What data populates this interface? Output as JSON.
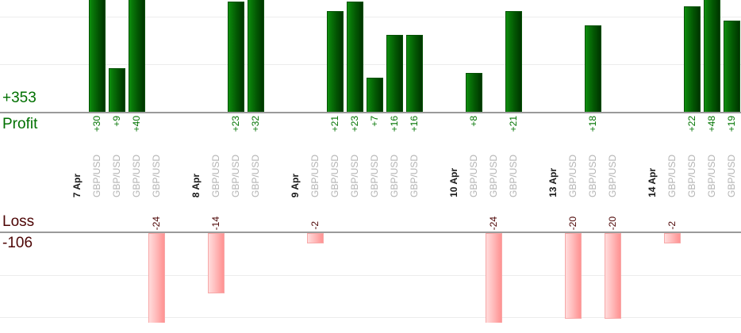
{
  "summary": {
    "profit_total": "+353",
    "profit_label": "Profit",
    "loss_label": "Loss",
    "loss_total": "-106"
  },
  "chart_data": {
    "type": "bar",
    "description": "Per-trade profit and loss bars grouped by trading day; green bars above the upper baseline are profits, pink bars below the lower baseline are losses",
    "groups": [
      {
        "date": "7 Apr",
        "trades": [
          {
            "symbol": "GBP/USD",
            "value": 30
          },
          {
            "symbol": "GBP/USD",
            "value": 9
          },
          {
            "symbol": "GBP/USD",
            "value": 40
          },
          {
            "symbol": "GBP/USD",
            "value": -24
          }
        ]
      },
      {
        "date": "8 Apr",
        "trades": [
          {
            "symbol": "GBP/USD",
            "value": -14
          },
          {
            "symbol": "GBP/USD",
            "value": 23
          },
          {
            "symbol": "GBP/USD",
            "value": 32
          }
        ]
      },
      {
        "date": "9 Apr",
        "trades": [
          {
            "symbol": "GBP/USD",
            "value": -2
          },
          {
            "symbol": "GBP/USD",
            "value": 21
          },
          {
            "symbol": "GBP/USD",
            "value": 23
          },
          {
            "symbol": "GBP/USD",
            "value": 7
          },
          {
            "symbol": "GBP/USD",
            "value": 16
          },
          {
            "symbol": "GBP/USD",
            "value": 16
          }
        ]
      },
      {
        "date": "10 Apr",
        "trades": [
          {
            "symbol": "GBP/USD",
            "value": 8
          },
          {
            "symbol": "GBP/USD",
            "value": -24
          },
          {
            "symbol": "GBP/USD",
            "value": 21
          }
        ]
      },
      {
        "date": "13 Apr",
        "trades": [
          {
            "symbol": "GBP/USD",
            "value": -20
          },
          {
            "symbol": "GBP/USD",
            "value": 18
          },
          {
            "symbol": "GBP/USD",
            "value": -20
          }
        ]
      },
      {
        "date": "14 Apr",
        "trades": [
          {
            "symbol": "GBP/USD",
            "value": -2
          },
          {
            "symbol": "GBP/USD",
            "value": 22
          },
          {
            "symbol": "GBP/USD",
            "value": 48
          },
          {
            "symbol": "GBP/USD",
            "value": 19
          }
        ]
      }
    ],
    "totals": {
      "profit": 353,
      "loss": -106
    },
    "profit_axis": {
      "gridline_values": [
        10,
        20
      ],
      "baseline": 0,
      "top_clipped": true
    },
    "loss_axis": {
      "gridline_values": [
        -10,
        -20
      ],
      "baseline": 0,
      "bottom_clipped": true
    },
    "legend": "none",
    "grid": true
  },
  "colors": {
    "profit_bar_light": "#0e910e",
    "profit_bar_dark": "#003600",
    "loss_bar_light": "#ffdcdc",
    "loss_bar_dark": "#ff9393",
    "profit_text": "#007000",
    "loss_text": "#4d0505",
    "date_text": "#1a1a1a",
    "symbol_text": "#b3b3b3",
    "axis_line": "#9a9a9a",
    "gridline": "#ececec"
  }
}
